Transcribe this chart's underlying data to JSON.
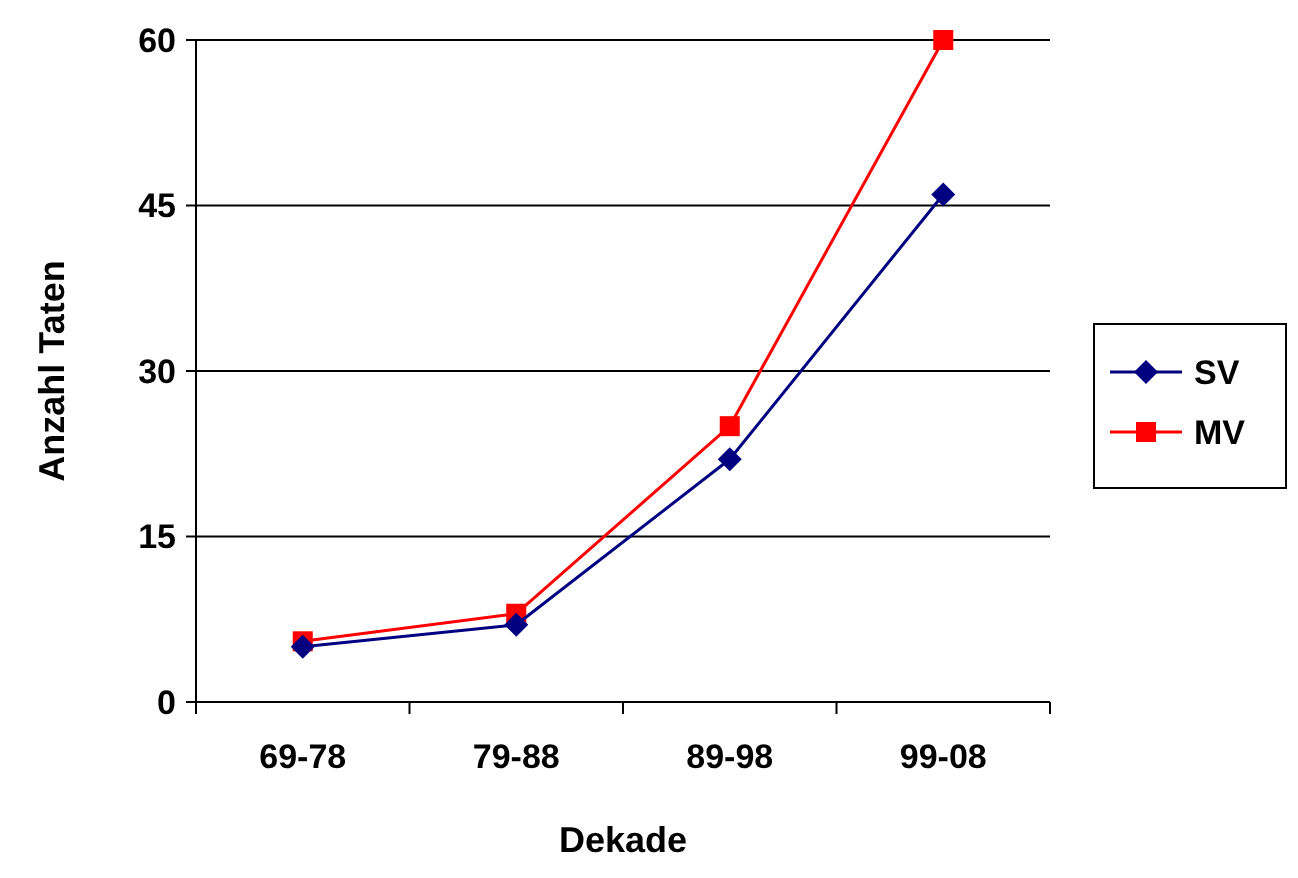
{
  "chart_data": {
    "type": "line",
    "xlabel": "Dekade",
    "ylabel": "Anzahl Taten",
    "categories": [
      "69-78",
      "79-88",
      "89-98",
      "99-08"
    ],
    "series": [
      {
        "name": "SV",
        "color": "#000080",
        "marker": "diamond",
        "values": [
          5,
          7,
          22,
          46
        ]
      },
      {
        "name": "MV",
        "color": "#ff0000",
        "marker": "square",
        "values": [
          5.5,
          8,
          25,
          60
        ]
      }
    ],
    "ylim": [
      0,
      60
    ],
    "yticks": [
      0,
      15,
      30,
      45,
      60
    ],
    "grid": "y",
    "legend": "right",
    "line_style": "solid"
  }
}
